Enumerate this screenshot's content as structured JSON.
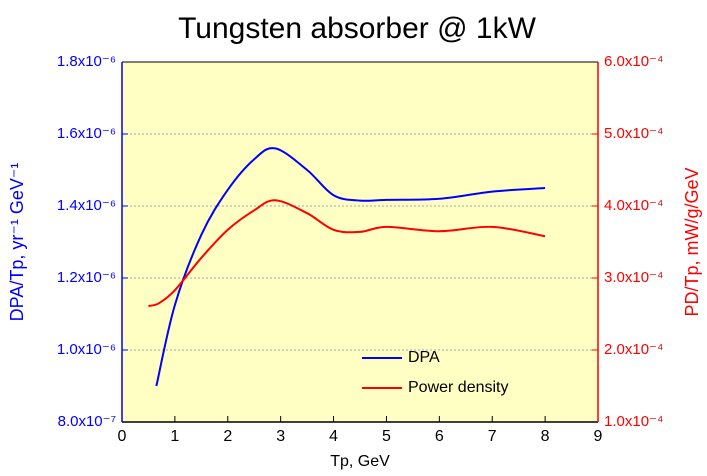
{
  "chart_data": {
    "type": "line",
    "title": "Tungsten absorber @ 1kW",
    "x_label": "Tp, GeV",
    "y_label": "DPA/Tp, yr⁻¹ GeV⁻¹",
    "y2_label": "PD/Tp, mW/g/GeV",
    "xlim": [
      0,
      9
    ],
    "xticks": [
      0,
      1,
      2,
      3,
      4,
      5,
      6,
      7,
      8,
      9
    ],
    "ylim": [
      8e-07,
      1.8e-06
    ],
    "yticks": [
      {
        "value": 8e-07,
        "label": "8.0x10⁻⁷"
      },
      {
        "value": 1e-06,
        "label": "1.0x10⁻⁶"
      },
      {
        "value": 1.2e-06,
        "label": "1.2x10⁻⁶"
      },
      {
        "value": 1.4e-06,
        "label": "1.4x10⁻⁶"
      },
      {
        "value": 1.6e-06,
        "label": "1.6x10⁻⁶"
      },
      {
        "value": 1.8e-06,
        "label": "1.8x10⁻⁶"
      }
    ],
    "y2lim": [
      0.0001,
      0.0006
    ],
    "y2ticks": [
      {
        "value": 0.0001,
        "label": "1.0x10⁻⁴"
      },
      {
        "value": 0.0002,
        "label": "2.0x10⁻⁴"
      },
      {
        "value": 0.0003,
        "label": "3.0x10⁻⁴"
      },
      {
        "value": 0.0004,
        "label": "4.0x10⁻⁴"
      },
      {
        "value": 0.0005,
        "label": "5.0x10⁻⁴"
      },
      {
        "value": 0.0006,
        "label": "6.0x10⁻⁴"
      }
    ],
    "grid": true,
    "legend": "lower center",
    "series": [
      {
        "name": "DPA",
        "color": "#0000ff",
        "axis": "y",
        "x": [
          0.65,
          1,
          1.5,
          2,
          2.5,
          2.9,
          3.5,
          4,
          4.5,
          5,
          6,
          7,
          8
        ],
        "values": [
          9e-07,
          1.125e-06,
          1.32e-06,
          1.445e-06,
          1.53e-06,
          1.56e-06,
          1.5e-06,
          1.43e-06,
          1.415e-06,
          1.417e-06,
          1.42e-06,
          1.44e-06,
          1.45e-06
        ]
      },
      {
        "name": "Power density",
        "color": "#ff0000",
        "axis": "y2",
        "x": [
          0.5,
          0.7,
          1,
          1.5,
          2,
          2.5,
          2.9,
          3.5,
          4,
          4.5,
          5,
          6,
          7,
          8
        ],
        "values": [
          0.000261,
          0.000265,
          0.000283,
          0.000328,
          0.000367,
          0.000394,
          0.000408,
          0.00039,
          0.000367,
          0.000364,
          0.000371,
          0.000365,
          0.000371,
          0.000358
        ]
      }
    ]
  }
}
